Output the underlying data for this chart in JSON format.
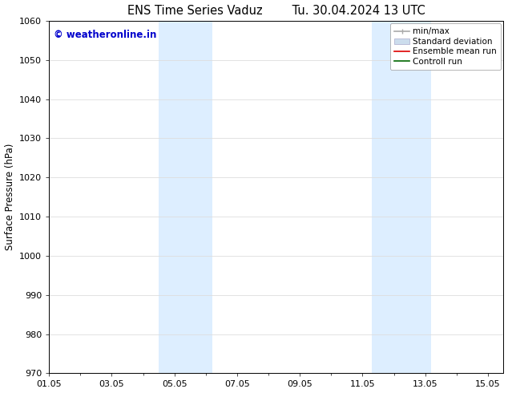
{
  "title_left": "ENS Time Series Vaduz",
  "title_right": "Tu. 30.04.2024 13 UTC",
  "ylabel": "Surface Pressure (hPa)",
  "ylim": [
    970,
    1060
  ],
  "yticks": [
    970,
    980,
    990,
    1000,
    1010,
    1020,
    1030,
    1040,
    1050,
    1060
  ],
  "xtick_labels": [
    "01.05",
    "03.05",
    "05.05",
    "07.05",
    "09.05",
    "11.05",
    "13.05",
    "15.05"
  ],
  "xtick_positions": [
    0,
    2,
    4,
    6,
    8,
    10,
    12,
    14
  ],
  "xlim": [
    0,
    14.5
  ],
  "shaded_regions": [
    {
      "x_start": 3.5,
      "x_end": 5.2,
      "color": "#ddeeff"
    },
    {
      "x_start": 10.3,
      "x_end": 12.2,
      "color": "#ddeeff"
    }
  ],
  "watermark_text": "© weatheronline.in",
  "watermark_color": "#0000cc",
  "watermark_fontsize": 8.5,
  "legend_labels": [
    "min/max",
    "Standard deviation",
    "Ensemble mean run",
    "Controll run"
  ],
  "legend_colors_line": [
    "#aaaaaa",
    "#ccddee",
    "#ff0000",
    "#006600"
  ],
  "background_color": "#ffffff",
  "plot_bg_color": "#ffffff",
  "grid_color": "#dddddd",
  "title_fontsize": 10.5,
  "axis_fontsize": 8,
  "ylabel_fontsize": 8.5,
  "legend_fontsize": 7.5
}
